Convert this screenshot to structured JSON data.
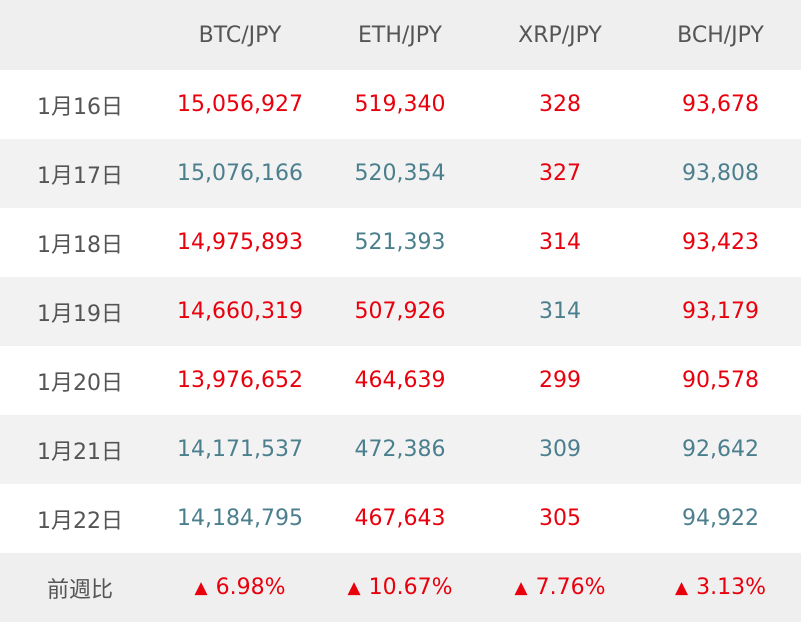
{
  "table": {
    "headers": [
      "",
      "BTC/JPY",
      "ETH/JPY",
      "XRP/JPY",
      "BCH/JPY"
    ],
    "rows": [
      {
        "date": "1月16日",
        "cells": [
          {
            "value": "15,056,927",
            "direction": "up"
          },
          {
            "value": "519,340",
            "direction": "up"
          },
          {
            "value": "328",
            "direction": "up"
          },
          {
            "value": "93,678",
            "direction": "up"
          }
        ]
      },
      {
        "date": "1月17日",
        "cells": [
          {
            "value": "15,076,166",
            "direction": "down"
          },
          {
            "value": "520,354",
            "direction": "down"
          },
          {
            "value": "327",
            "direction": "up"
          },
          {
            "value": "93,808",
            "direction": "down"
          }
        ]
      },
      {
        "date": "1月18日",
        "cells": [
          {
            "value": "14,975,893",
            "direction": "up"
          },
          {
            "value": "521,393",
            "direction": "down"
          },
          {
            "value": "314",
            "direction": "up"
          },
          {
            "value": "93,423",
            "direction": "up"
          }
        ]
      },
      {
        "date": "1月19日",
        "cells": [
          {
            "value": "14,660,319",
            "direction": "up"
          },
          {
            "value": "507,926",
            "direction": "up"
          },
          {
            "value": "314",
            "direction": "down"
          },
          {
            "value": "93,179",
            "direction": "up"
          }
        ]
      },
      {
        "date": "1月20日",
        "cells": [
          {
            "value": "13,976,652",
            "direction": "up"
          },
          {
            "value": "464,639",
            "direction": "up"
          },
          {
            "value": "299",
            "direction": "up"
          },
          {
            "value": "90,578",
            "direction": "up"
          }
        ]
      },
      {
        "date": "1月21日",
        "cells": [
          {
            "value": "14,171,537",
            "direction": "down"
          },
          {
            "value": "472,386",
            "direction": "down"
          },
          {
            "value": "309",
            "direction": "down"
          },
          {
            "value": "92,642",
            "direction": "down"
          }
        ]
      },
      {
        "date": "1月22日",
        "cells": [
          {
            "value": "14,184,795",
            "direction": "down"
          },
          {
            "value": "467,643",
            "direction": "up"
          },
          {
            "value": "305",
            "direction": "up"
          },
          {
            "value": "94,922",
            "direction": "down"
          }
        ]
      }
    ],
    "footer": {
      "label": "前週比",
      "changes": [
        {
          "symbol": "▲",
          "value": "6.98%"
        },
        {
          "symbol": "▲",
          "value": "10.67%"
        },
        {
          "symbol": "▲",
          "value": "7.76%"
        },
        {
          "symbol": "▲",
          "value": "3.13%"
        }
      ]
    }
  },
  "colors": {
    "up": "#e8000d",
    "down": "#4b7f8e",
    "label": "#555555",
    "header_bg": "#efefef",
    "stripe_bg": "#f2f2f2"
  }
}
